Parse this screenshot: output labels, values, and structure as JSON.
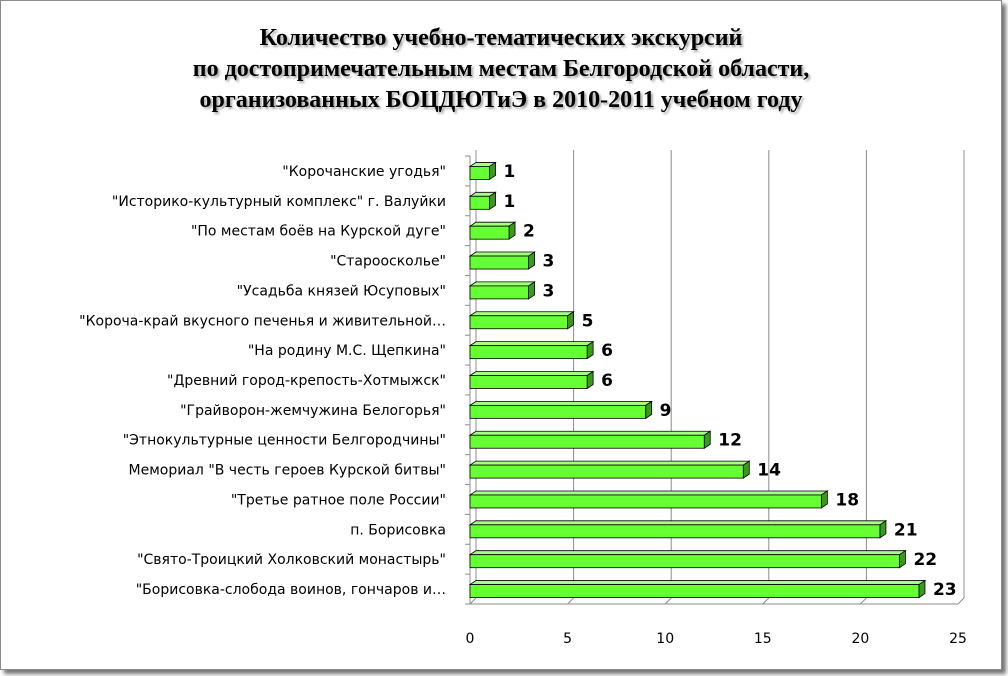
{
  "chart_data": {
    "type": "bar",
    "orientation": "horizontal",
    "title_lines": [
      "Количество учебно-тематических экскурсий",
      "по достопримечательным местам Белгородской области,",
      "организованных БОЦДЮТиЭ в 2010-2011 учебном году"
    ],
    "categories": [
      "\"Корочанские угодья\"",
      "\"Историко-культурный комплекс\" г. Валуйки",
      "\"По местам боёв на Курской дуге\"",
      "\"Старооскольe\"",
      "\"Усадьба князей Юсуповых\"",
      "\"Короча-край вкусного печенья и живительной…",
      "\"На родину М.С. Щепкина\"",
      "\"Древний город-крепость-Хотмыжск\"",
      "\"Грайворон-жемчужина Белогорья\"",
      "\"Этнокультурные ценности Белгородчины\"",
      "Мемориал \"В честь героев Курской битвы\"",
      "\"Третье ратное поле России\"",
      "п. Борисовка",
      "\"Свято-Троицкий Холковский монастырь\"",
      "\"Борисовка-слобода воинов, гончаров и…"
    ],
    "values": [
      1,
      1,
      2,
      3,
      3,
      5,
      6,
      6,
      9,
      12,
      14,
      18,
      21,
      22,
      23
    ],
    "xlim": [
      0,
      25
    ],
    "xticks": [
      0,
      5,
      10,
      15,
      20,
      25
    ],
    "xtick_labels": [
      "0",
      "5",
      "10",
      "15",
      "20",
      "25"
    ],
    "grid": "vertical",
    "legend": "none",
    "data_labels": true,
    "colors": {
      "bar_front": "#66ff33",
      "bar_top": "#a6ff80",
      "bar_side": "#3a9a1c",
      "bar_outline": "#000000",
      "grid": "#8c8c8c"
    }
  }
}
